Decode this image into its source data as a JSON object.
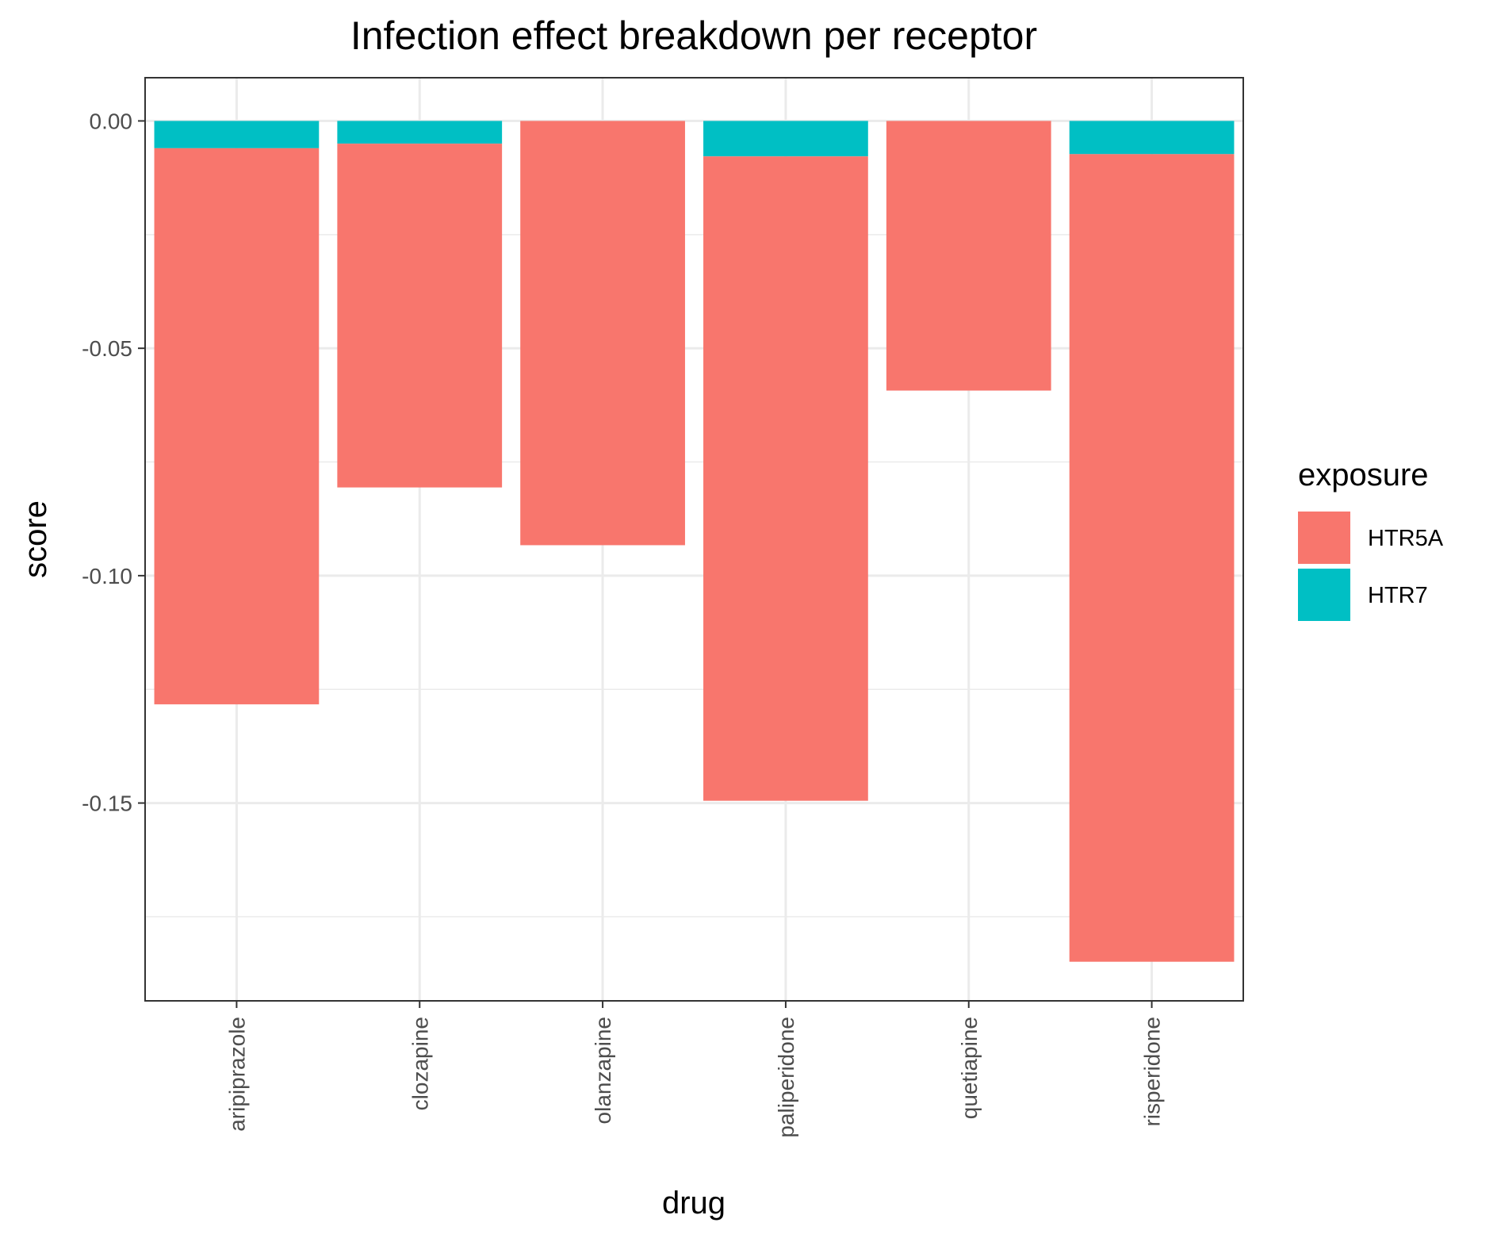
{
  "chart_data": {
    "type": "bar",
    "stacked": true,
    "title": "Infection effect breakdown per receptor",
    "xlabel": "drug",
    "ylabel": "score",
    "categories": [
      "aripiprazole",
      "clozapine",
      "olanzapine",
      "paliperidone",
      "quetiapine",
      "risperidone"
    ],
    "series": [
      {
        "name": "HTR7",
        "color": "#00BFC4",
        "values": [
          -0.006,
          -0.005,
          0.0,
          -0.0078,
          0.0,
          -0.0073
        ]
      },
      {
        "name": "HTR5A",
        "color": "#F8766D",
        "values": [
          -0.1223,
          -0.0756,
          -0.0933,
          -0.1417,
          -0.0593,
          -0.1776
        ]
      }
    ],
    "y_ticks": [
      0.0,
      -0.05,
      -0.1,
      -0.15
    ],
    "y_tick_labels": [
      "0.00",
      "-0.05",
      "-0.10",
      "-0.15"
    ],
    "y_minor_ticks": [
      -0.025,
      -0.075,
      -0.125,
      -0.175
    ],
    "ylim": [
      -0.1935,
      0.0095
    ],
    "grid": true,
    "legend": {
      "title": "exposure",
      "position": "right",
      "entries": [
        {
          "label": "HTR5A",
          "color": "#F8766D"
        },
        {
          "label": "HTR7",
          "color": "#00BFC4"
        }
      ]
    }
  }
}
